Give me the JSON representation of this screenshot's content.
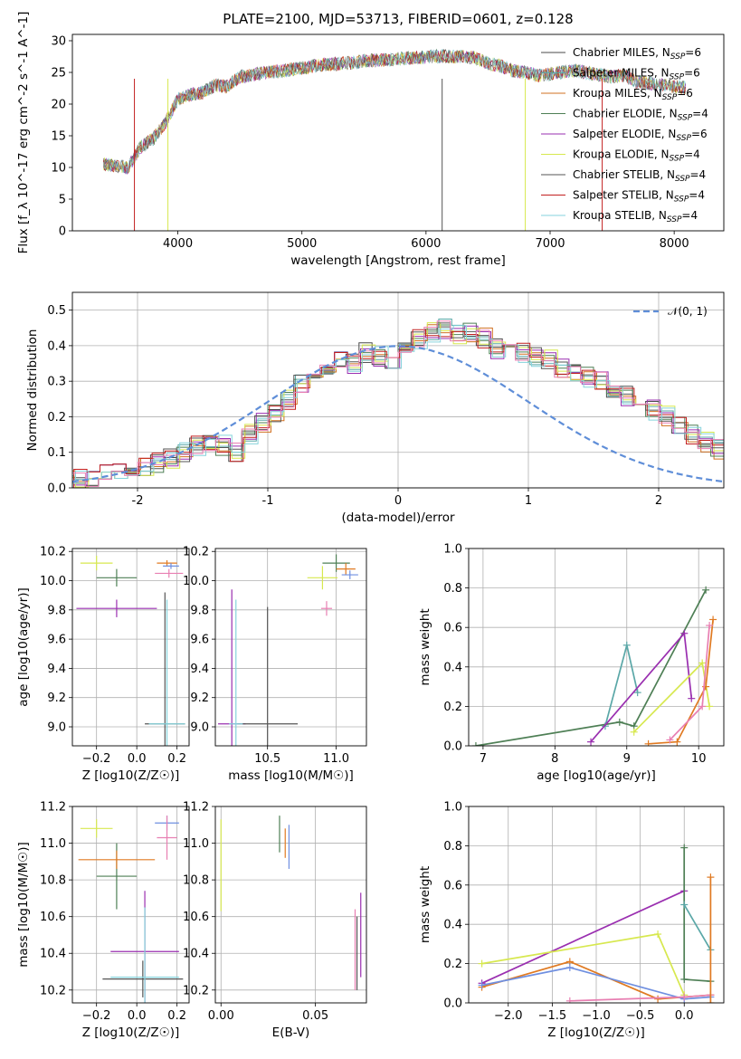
{
  "figure_title": "PLATE=2100, MJD=53713, FIBERID=0601, z=0.128",
  "colors": {
    "chabrier_miles": "#4a4a4a",
    "salpeter_miles": "#5aa7a7",
    "kroupa_miles": "#d07020",
    "chabrier_elodie": "#4e7f55",
    "salpeter_elodie": "#9a2fb0",
    "kroupa_elodie": "#d7e84f",
    "chabrier_stelib": "#555555",
    "salpeter_stelib": "#c21f1f",
    "kroupa_stelib": "#86d3dc",
    "gaussian": "#5f8ed8",
    "pink": "#e87fb2",
    "orange": "#e07a22",
    "blue": "#6f8fe0"
  },
  "chart_data": [
    {
      "type": "line",
      "id": "spectrum",
      "xlabel": "wavelength [Angstrom, rest frame]",
      "ylabel": "Flux [f_λ 10^-17 erg cm^-2 s^-1 A^-1]",
      "xlim": [
        3150,
        8400
      ],
      "ylim": [
        0,
        31
      ],
      "xticks": [
        4000,
        5000,
        6000,
        7000,
        8000
      ],
      "yticks": [
        0,
        5,
        10,
        15,
        20,
        25,
        30
      ],
      "legend": [
        {
          "label": "Chabrier MILES, N_SSP=6"
        },
        {
          "label": "Salpeter MILES, N_SSP=6"
        },
        {
          "label": "Kroupa MILES, N_SSP=6"
        },
        {
          "label": "Chabrier ELODIE, N_SSP=4"
        },
        {
          "label": "Salpeter ELODIE, N_SSP=6"
        },
        {
          "label": "Kroupa ELODIE, N_SSP=4"
        },
        {
          "label": "Chabrier STELIB, N_SSP=4"
        },
        {
          "label": "Salpeter STELIB, N_SSP=4"
        },
        {
          "label": "Kroupa STELIB, N_SSP=4"
        }
      ],
      "x": [
        3400,
        3500,
        3600,
        3700,
        3800,
        3900,
        4000,
        4100,
        4200,
        4300,
        4400,
        4500,
        4600,
        4700,
        4800,
        4900,
        5000,
        5100,
        5200,
        5300,
        5400,
        5500,
        5600,
        5700,
        5800,
        5900,
        6000,
        6100,
        6200,
        6300,
        6400,
        6500,
        6600,
        6700,
        6800,
        6900,
        7000,
        7100,
        7200,
        7300,
        7400,
        7500,
        7600,
        7700,
        7800,
        7900,
        8000,
        8100
      ],
      "y": [
        10.5,
        10.3,
        10.0,
        13.2,
        14.5,
        17.0,
        20.8,
        21.5,
        21.8,
        23.0,
        22.8,
        24.3,
        24.6,
        25.0,
        25.1,
        25.4,
        25.7,
        26.0,
        26.3,
        26.4,
        26.5,
        26.8,
        26.9,
        27.0,
        27.2,
        27.3,
        27.4,
        27.6,
        27.5,
        27.5,
        27.3,
        26.4,
        26.0,
        25.3,
        25.0,
        24.5,
        24.8,
        25.0,
        25.3,
        24.9,
        24.6,
        24.3,
        24.6,
        23.5,
        23.3,
        23.0,
        22.8,
        22.6
      ]
    },
    {
      "type": "step",
      "id": "residuals",
      "xlabel": "(data-model)/error",
      "ylabel": "Normed distribution",
      "xlim": [
        -2.5,
        2.5
      ],
      "ylim": [
        0,
        0.55
      ],
      "xticks": [
        -2,
        -1,
        0,
        1,
        2
      ],
      "yticks": [
        0.0,
        0.1,
        0.2,
        0.3,
        0.4,
        0.5
      ],
      "legend": [
        {
          "label": "𝒩(0, 1)"
        }
      ],
      "bin_width": 0.1,
      "bin_start": -2.6,
      "values": [
        0.02,
        0.025,
        0.03,
        0.04,
        0.05,
        0.055,
        0.06,
        0.07,
        0.08,
        0.1,
        0.12,
        0.13,
        0.12,
        0.1,
        0.15,
        0.18,
        0.21,
        0.25,
        0.29,
        0.31,
        0.34,
        0.37,
        0.35,
        0.38,
        0.37,
        0.34,
        0.38,
        0.42,
        0.44,
        0.45,
        0.43,
        0.44,
        0.42,
        0.39,
        0.4,
        0.38,
        0.37,
        0.36,
        0.34,
        0.33,
        0.31,
        0.3,
        0.28,
        0.26,
        0.25,
        0.22,
        0.2,
        0.17,
        0.15,
        0.13,
        0.11,
        0.1,
        0.08,
        0.07,
        0.06,
        0.06,
        0.05,
        0.04,
        0.03,
        0.03
      ]
    },
    {
      "type": "errorbar",
      "id": "age_vs_Z",
      "xlabel": "Z [log10(Z/Z☉)]",
      "ylabel": "age  [log10(age/yr)]",
      "xlim": [
        -0.32,
        0.26
      ],
      "ylim": [
        8.87,
        10.22
      ],
      "xticks": [
        -0.2,
        0.0,
        0.2
      ],
      "yticks": [
        9.0,
        9.2,
        9.4,
        9.6,
        9.8,
        10.0,
        10.2
      ],
      "points": [
        {
          "x": -0.2,
          "y": 10.12,
          "xerr": 0.08,
          "yerr": 0.05
        },
        {
          "x": -0.1,
          "y": 10.02,
          "xerr": 0.1,
          "yerr": 0.06
        },
        {
          "x": 0.15,
          "y": 10.12,
          "xerr": 0.05,
          "yerr": 0.02
        },
        {
          "x": 0.17,
          "y": 10.1,
          "xerr": 0.04,
          "yerr": 0.02
        },
        {
          "x": 0.16,
          "y": 10.05,
          "xerr": 0.07,
          "yerr": 0.03
        },
        {
          "x": -0.1,
          "y": 9.81,
          "xerr": 0.2,
          "yerr": 0.06
        },
        {
          "x": 0.14,
          "y": 9.02,
          "xerr": 0.1,
          "yerr": 0.9
        },
        {
          "x": 0.15,
          "y": 9.02,
          "xerr": 0.09,
          "yerr": 0.85
        }
      ]
    },
    {
      "type": "errorbar",
      "id": "age_vs_mass",
      "xlabel": "mass [log10(M/M☉)]",
      "ylabel": "",
      "xlim": [
        10.12,
        11.22
      ],
      "ylim": [
        8.87,
        10.22
      ],
      "xticks": [
        10.5,
        11.0
      ],
      "yticks": [
        9.0,
        9.2,
        9.4,
        9.6,
        9.8,
        10.0,
        10.2
      ],
      "points": [
        {
          "x": 10.9,
          "y": 10.02,
          "xerr": 0.11,
          "yerr": 0.08
        },
        {
          "x": 11.0,
          "y": 10.12,
          "xerr": 0.1,
          "yerr": 0.06
        },
        {
          "x": 11.07,
          "y": 10.08,
          "xerr": 0.07,
          "yerr": 0.04
        },
        {
          "x": 11.1,
          "y": 10.04,
          "xerr": 0.06,
          "yerr": 0.03
        },
        {
          "x": 10.93,
          "y": 9.81,
          "xerr": 0.04,
          "yerr": 0.05
        },
        {
          "x": 10.24,
          "y": 9.02,
          "xerr": 0.1,
          "yerr": 0.92
        },
        {
          "x": 10.5,
          "y": 9.02,
          "xerr": 0.22,
          "yerr": 0.8
        },
        {
          "x": 10.27,
          "y": 9.02,
          "xerr": 0.05,
          "yerr": 0.85
        }
      ]
    },
    {
      "type": "line",
      "id": "weight_vs_age",
      "xlabel": "age  [log10(age/yr)]",
      "ylabel": "mass weight",
      "xlim": [
        6.8,
        10.35
      ],
      "ylim": [
        0,
        1
      ],
      "xticks": [
        7,
        8,
        9,
        10
      ],
      "yticks": [
        0.0,
        0.2,
        0.4,
        0.6,
        0.8,
        1.0
      ],
      "series": [
        {
          "x": [
            6.9,
            8.9,
            9.1,
            10.1
          ],
          "y": [
            0.0,
            0.12,
            0.1,
            0.79
          ],
          "color_key": "chabrier_elodie"
        },
        {
          "x": [
            8.7,
            9.0,
            9.15
          ],
          "y": [
            0.1,
            0.51,
            0.27
          ],
          "color_key": "salpeter_miles"
        },
        {
          "x": [
            8.5,
            9.8,
            9.9
          ],
          "y": [
            0.02,
            0.57,
            0.24
          ],
          "color_key": "salpeter_elodie"
        },
        {
          "x": [
            9.1,
            10.05,
            10.15
          ],
          "y": [
            0.07,
            0.42,
            0.2
          ],
          "color_key": "kroupa_elodie"
        },
        {
          "x": [
            9.3,
            9.7,
            10.1,
            10.2
          ],
          "y": [
            0.01,
            0.02,
            0.3,
            0.64
          ],
          "color_key": "orange"
        },
        {
          "x": [
            9.6,
            10.05,
            10.15
          ],
          "y": [
            0.03,
            0.2,
            0.61
          ],
          "color_key": "pink"
        }
      ]
    },
    {
      "type": "errorbar",
      "id": "mass_vs_Z",
      "xlabel": "Z [log10(Z/Z☉)]",
      "ylabel": "mass [log10(M/M☉)]",
      "xlim": [
        -0.32,
        0.26
      ],
      "ylim": [
        10.13,
        11.2
      ],
      "xticks": [
        -0.2,
        0.0,
        0.2
      ],
      "yticks": [
        10.2,
        10.4,
        10.6,
        10.8,
        11.0,
        11.2
      ],
      "points": [
        {
          "x": -0.2,
          "y": 11.08,
          "xerr": 0.08,
          "yerr": 0.05
        },
        {
          "x": -0.1,
          "y": 10.82,
          "xerr": 0.1,
          "yerr": 0.18
        },
        {
          "x": -0.1,
          "y": 10.91,
          "xerr": 0.19,
          "yerr": 0.05
        },
        {
          "x": 0.15,
          "y": 11.11,
          "xerr": 0.06,
          "yerr": 0.04
        },
        {
          "x": 0.15,
          "y": 11.03,
          "xerr": 0.05,
          "yerr": 0.12
        },
        {
          "x": 0.04,
          "y": 10.41,
          "xerr": 0.17,
          "yerr": 0.33
        },
        {
          "x": 0.03,
          "y": 10.26,
          "xerr": 0.2,
          "yerr": 0.1
        },
        {
          "x": 0.04,
          "y": 10.27,
          "xerr": 0.17,
          "yerr": 0.38
        }
      ]
    },
    {
      "type": "errorbar",
      "id": "mass_vs_ebv",
      "xlabel": "E(B-V)",
      "ylabel": "",
      "xlim": [
        -0.003,
        0.077
      ],
      "ylim": [
        10.13,
        11.2
      ],
      "xticks": [
        0.0,
        0.05
      ],
      "yticks": [
        10.2,
        10.4,
        10.6,
        10.8,
        11.0,
        11.2
      ],
      "points": [
        {
          "x": 0.0,
          "y": 10.88,
          "xerr": 0.0,
          "yerr": 0.25
        },
        {
          "x": 0.031,
          "y": 11.05,
          "xerr": 0.0,
          "yerr": 0.1
        },
        {
          "x": 0.034,
          "y": 11.0,
          "xerr": 0.0,
          "yerr": 0.08
        },
        {
          "x": 0.036,
          "y": 10.98,
          "xerr": 0.0,
          "yerr": 0.12
        },
        {
          "x": 0.071,
          "y": 10.42,
          "xerr": 0.0,
          "yerr": 0.22
        },
        {
          "x": 0.074,
          "y": 10.5,
          "xerr": 0.0,
          "yerr": 0.23
        },
        {
          "x": 0.072,
          "y": 10.4,
          "xerr": 0.0,
          "yerr": 0.2
        }
      ]
    },
    {
      "type": "line",
      "id": "weight_vs_Z",
      "xlabel": "Z [log10(Z/Z☉)]",
      "ylabel": "mass weight",
      "xlim": [
        -2.45,
        0.45
      ],
      "ylim": [
        0,
        1
      ],
      "xticks": [
        -2.0,
        -1.5,
        -1.0,
        -0.5,
        0.0
      ],
      "yticks": [
        0.0,
        0.2,
        0.4,
        0.6,
        0.8,
        1.0
      ],
      "series": [
        {
          "x": [
            -2.3,
            0.0
          ],
          "y": [
            0.1,
            0.57
          ],
          "color_key": "salpeter_elodie"
        },
        {
          "x": [
            -2.3,
            -0.3,
            0.0
          ],
          "y": [
            0.2,
            0.35,
            0.04
          ],
          "color_key": "kroupa_elodie"
        },
        {
          "x": [
            -2.3,
            -1.3,
            -0.3,
            0.3
          ],
          "y": [
            0.08,
            0.21,
            0.02,
            0.04
          ],
          "color_key": "orange"
        },
        {
          "x": [
            -2.3,
            -1.3,
            0.0,
            0.3
          ],
          "y": [
            0.09,
            0.18,
            0.02,
            0.03
          ],
          "color_key": "blue"
        },
        {
          "x": [
            -1.3,
            0.0,
            0.3
          ],
          "y": [
            0.01,
            0.03,
            0.04
          ],
          "color_key": "pink"
        },
        {
          "x": [
            0.0,
            0.0,
            0.3
          ],
          "y": [
            0.79,
            0.12,
            0.11
          ],
          "color_key": "chabrier_elodie"
        },
        {
          "x": [
            0.0,
            0.3
          ],
          "y": [
            0.5,
            0.27
          ],
          "color_key": "salpeter_miles"
        },
        {
          "x": [
            0.3,
            0.3
          ],
          "y": [
            0.0,
            0.64
          ],
          "color_key": "orange"
        }
      ]
    }
  ]
}
